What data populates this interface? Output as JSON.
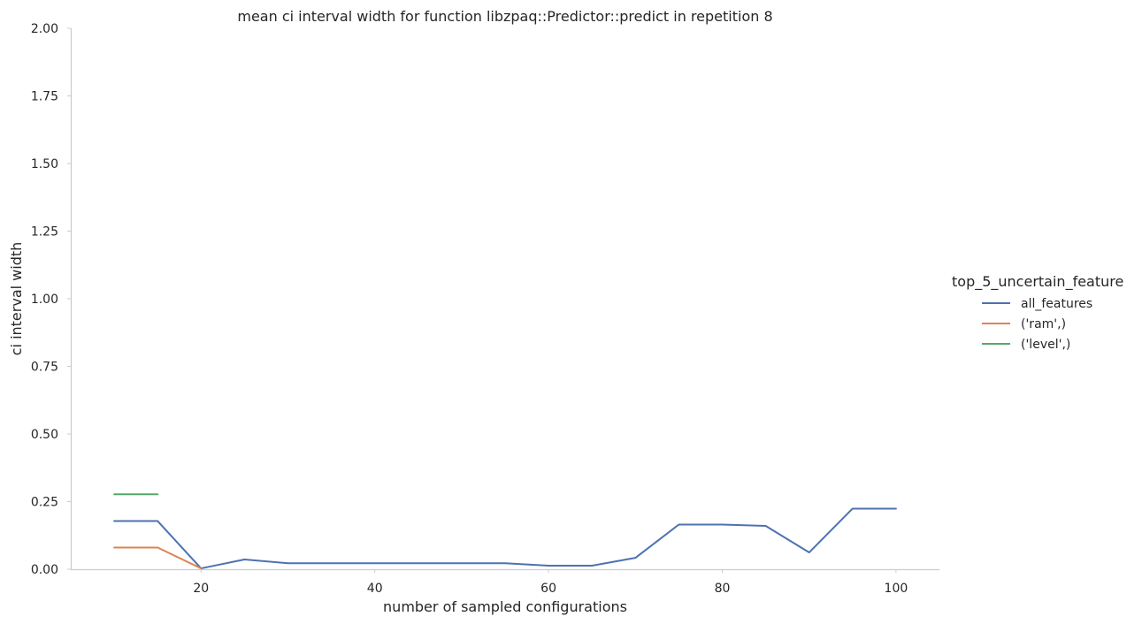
{
  "chart_data": {
    "type": "line",
    "title": "mean ci interval width for function libzpaq::Predictor::predict in repetition 8",
    "xlabel": "number of sampled configurations",
    "ylabel": "ci interval width",
    "xlim": [
      5,
      105
    ],
    "ylim": [
      0,
      2
    ],
    "xticks": [
      20,
      40,
      60,
      80,
      100
    ],
    "yticks": [
      0.0,
      0.25,
      0.5,
      0.75,
      1.0,
      1.25,
      1.5,
      1.75,
      2.0
    ],
    "grid": false,
    "legend": {
      "title": "top_5_uncertain_feature",
      "placement": "right"
    },
    "series": [
      {
        "name": "all_features",
        "color": "#4c72b0",
        "x": [
          10,
          15,
          20,
          25,
          30,
          35,
          40,
          45,
          50,
          55,
          60,
          65,
          70,
          75,
          80,
          85,
          90,
          95,
          100
        ],
        "y": [
          0.178,
          0.178,
          0.003,
          0.036,
          0.022,
          0.022,
          0.022,
          0.022,
          0.022,
          0.022,
          0.013,
          0.013,
          0.042,
          0.165,
          0.165,
          0.16,
          0.062,
          0.224,
          0.224
        ]
      },
      {
        "name": "('ram',)",
        "color": "#dd8452",
        "x": [
          10,
          15,
          20
        ],
        "y": [
          0.08,
          0.08,
          0.003
        ]
      },
      {
        "name": "('level',)",
        "color": "#55a868",
        "x": [
          10,
          15
        ],
        "y": [
          0.277,
          0.277
        ]
      }
    ]
  }
}
